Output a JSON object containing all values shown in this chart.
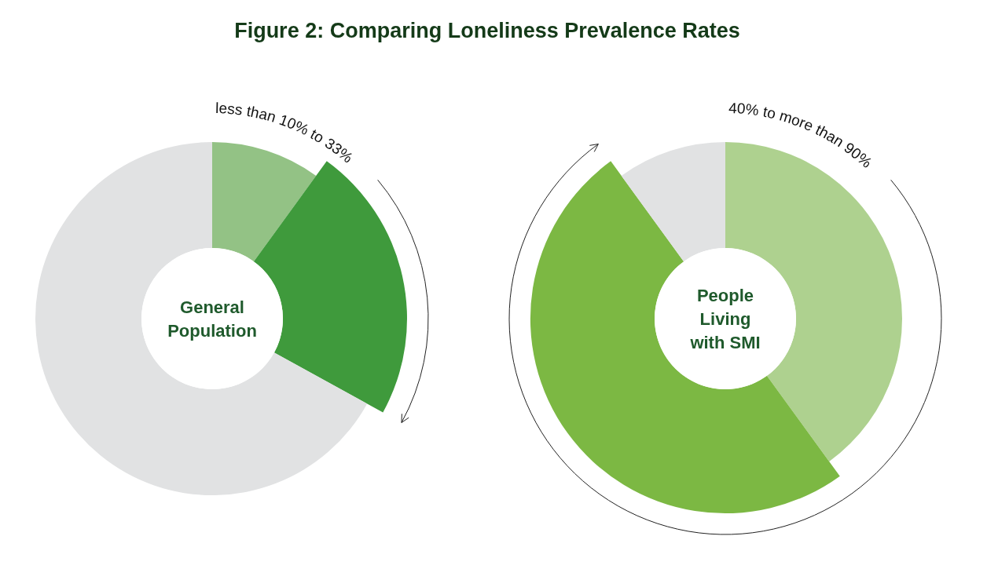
{
  "chart_data": [
    {
      "type": "donut",
      "title": "Figure 2: Comparing Loneliness Prevalence Rates",
      "categories": [
        null,
        null,
        null
      ],
      "values": [
        10,
        23,
        67
      ],
      "colors": [
        "#93c285",
        "#3f9a3c",
        "#e1e2e3"
      ],
      "annotations": [
        "General Population",
        "less than 10% to 33%"
      ]
    },
    {
      "type": "donut",
      "categories": [
        null,
        null,
        null
      ],
      "values": [
        40,
        50,
        10
      ],
      "colors": [
        "#aed18f",
        "#7cb843",
        "#e1e2e3"
      ],
      "annotations": [
        "People Living with SMI",
        "40% to more than 90%"
      ]
    }
  ]
}
